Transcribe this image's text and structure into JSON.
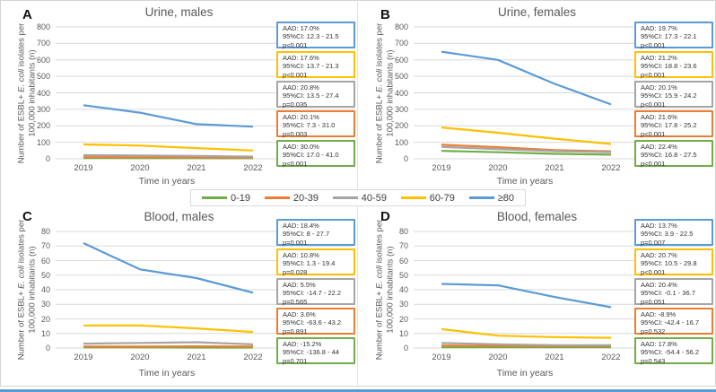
{
  "figure": {
    "xlabel": "Time in years",
    "ylabel": {
      "prefix": "Number of ESBL+ ",
      "italic": "E. coli",
      "suffix": " isolates per",
      "line2": "100,000 inhabitants (n)"
    },
    "years": [
      "2019",
      "2020",
      "2021",
      "2022"
    ],
    "colors": {
      "age_0_19": "#70AD47",
      "age_20_39": "#ED7D31",
      "age_40_59": "#A5A5A5",
      "age_60_79": "#FFC000",
      "age_80plus": "#5B9BD5",
      "gridline": "#D9D9D9",
      "axis_text": "#595959",
      "bottom_rule": "#5B9BD5"
    },
    "legend": {
      "items": [
        {
          "label": "0-19",
          "color": "#70AD47"
        },
        {
          "label": "20-39",
          "color": "#ED7D31"
        },
        {
          "label": "40-59",
          "color": "#A5A5A5"
        },
        {
          "label": "60-79",
          "color": "#FFC000"
        },
        {
          "label": "≥80",
          "color": "#5B9BD5"
        }
      ]
    }
  },
  "chart_data": [
    {
      "id": "A",
      "type": "line",
      "title": "Urine, males",
      "xlabel": "Time in years",
      "ylabel": "Number of ESBL+ E. coli isolates per 100,000 inhabitants (n)",
      "x": [
        "2019",
        "2020",
        "2021",
        "2022"
      ],
      "ylim": [
        0,
        800
      ],
      "ytick_step": 100,
      "grid": true,
      "series": [
        {
          "name": "0-19",
          "color": "#70AD47",
          "values": [
            5,
            4,
            4,
            3
          ]
        },
        {
          "name": "20-39",
          "color": "#ED7D31",
          "values": [
            10,
            9,
            8,
            7
          ]
        },
        {
          "name": "40-59",
          "color": "#A5A5A5",
          "values": [
            22,
            20,
            17,
            13
          ]
        },
        {
          "name": "60-79",
          "color": "#FFC000",
          "values": [
            87,
            80,
            65,
            50
          ]
        },
        {
          "name": "≥80",
          "color": "#5B9BD5",
          "values": [
            325,
            280,
            210,
            195
          ]
        }
      ],
      "annotations": [
        {
          "series": "≥80",
          "color": "#5B9BD5",
          "aad": "AAD: 17.0%",
          "ci": "95%CI: 12.3 - 21.5",
          "p": "p<0.001"
        },
        {
          "series": "60-79",
          "color": "#FFC000",
          "aad": "AAD: 17.6%",
          "ci": "95%CI: 13.7 - 21.3",
          "p": "p<0.001"
        },
        {
          "series": "40-59",
          "color": "#A5A5A5",
          "aad": "AAD: 20.8%",
          "ci": "95%CI: 13.5 - 27.4",
          "p": "p=0.035"
        },
        {
          "series": "20-39",
          "color": "#ED7D31",
          "aad": "AAD: 20.1%",
          "ci": "95%CI: 7.3 - 31.0",
          "p": "p=0.003"
        },
        {
          "series": "0-19",
          "color": "#70AD47",
          "aad": "AAD: 30.0%",
          "ci": "95%CI: 17.0 - 41.0",
          "p": "p<0.001"
        }
      ]
    },
    {
      "id": "B",
      "type": "line",
      "title": "Urine, females",
      "xlabel": "Time in years",
      "ylabel": "Number of ESBL+ E. coli isolates per 100,000 inhabitants (n)",
      "x": [
        "2019",
        "2020",
        "2021",
        "2022"
      ],
      "ylim": [
        0,
        800
      ],
      "ytick_step": 100,
      "grid": true,
      "series": [
        {
          "name": "0-19",
          "color": "#70AD47",
          "values": [
            48,
            40,
            30,
            25
          ]
        },
        {
          "name": "20-39",
          "color": "#ED7D31",
          "values": [
            85,
            70,
            52,
            45
          ]
        },
        {
          "name": "40-59",
          "color": "#A5A5A5",
          "values": [
            72,
            58,
            46,
            40
          ]
        },
        {
          "name": "60-79",
          "color": "#FFC000",
          "values": [
            190,
            158,
            122,
            90
          ]
        },
        {
          "name": "≥80",
          "color": "#5B9BD5",
          "values": [
            650,
            600,
            455,
            330
          ]
        }
      ],
      "annotations": [
        {
          "series": "≥80",
          "color": "#5B9BD5",
          "aad": "AAD: 19.7%",
          "ci": "95%CI: 17.3 - 22.1",
          "p": "p<0.001"
        },
        {
          "series": "60-79",
          "color": "#FFC000",
          "aad": "AAD: 21.2%",
          "ci": "95%CI: 18.8 - 23.6",
          "p": "p<0.001"
        },
        {
          "series": "40-59",
          "color": "#A5A5A5",
          "aad": "AAD: 20.1%",
          "ci": "95%CI: 15.9 - 24.2",
          "p": "p<0.001"
        },
        {
          "series": "20-39",
          "color": "#ED7D31",
          "aad": "AAD: 21.6%",
          "ci": "95%CI: 17.8 - 25.2",
          "p": "p<0.001"
        },
        {
          "series": "0-19",
          "color": "#70AD47",
          "aad": "AAD: 22.4%",
          "ci": "95%CI: 16.8 - 27.5",
          "p": "p<0.001"
        }
      ]
    },
    {
      "id": "C",
      "type": "line",
      "title": "Blood, males",
      "xlabel": "Time in years",
      "ylabel": "Number of ESBL+ E. coli isolates per 100,000 inhabitants (n)",
      "x": [
        "2019",
        "2020",
        "2021",
        "2022"
      ],
      "ylim": [
        0,
        80
      ],
      "ytick_step": 10,
      "grid": true,
      "series": [
        {
          "name": "0-19",
          "color": "#70AD47",
          "values": [
            0.4,
            0.4,
            0.3,
            0.3
          ]
        },
        {
          "name": "20-39",
          "color": "#ED7D31",
          "values": [
            1,
            1,
            1.2,
            1
          ]
        },
        {
          "name": "40-59",
          "color": "#A5A5A5",
          "values": [
            3,
            3.5,
            4,
            2.5
          ]
        },
        {
          "name": "60-79",
          "color": "#FFC000",
          "values": [
            15.5,
            15.5,
            13.5,
            11
          ]
        },
        {
          "name": "≥80",
          "color": "#5B9BD5",
          "values": [
            72,
            54,
            48,
            38
          ]
        }
      ],
      "annotations": [
        {
          "series": "≥80",
          "color": "#5B9BD5",
          "aad": "AAD: 18.4%",
          "ci": "95%CI: 8 - 27.7",
          "p": "p=0.001"
        },
        {
          "series": "60-79",
          "color": "#FFC000",
          "aad": "AAD: 10.8%",
          "ci": "95%CI: 1.3 - 19.4",
          "p": "p=0.028"
        },
        {
          "series": "40-59",
          "color": "#A5A5A5",
          "aad": "AAD: 5.5%",
          "ci": "95%CI: -14.7 - 22.2",
          "p": "p=0.565"
        },
        {
          "series": "20-39",
          "color": "#ED7D31",
          "aad": "AAD: 3.6%",
          "ci": "95%CI: -63.6 - 43.2",
          "p": "p=0.891"
        },
        {
          "series": "0-19",
          "color": "#70AD47",
          "aad": "AAD: -15.2%",
          "ci": "95%CI: -136.8 - 44",
          "p": "p=0.701"
        }
      ]
    },
    {
      "id": "D",
      "type": "line",
      "title": "Blood, females",
      "xlabel": "Time in years",
      "ylabel": "Number of ESBL+ E. coli isolates per 100,000 inhabitants (n)",
      "x": [
        "2019",
        "2020",
        "2021",
        "2022"
      ],
      "ylim": [
        0,
        80
      ],
      "ytick_step": 10,
      "grid": true,
      "series": [
        {
          "name": "0-19",
          "color": "#70AD47",
          "values": [
            0.5,
            0.5,
            0.5,
            0.5
          ]
        },
        {
          "name": "20-39",
          "color": "#ED7D31",
          "values": [
            1.7,
            1.5,
            1.5,
            1.5
          ]
        },
        {
          "name": "40-59",
          "color": "#A5A5A5",
          "values": [
            3.5,
            2.5,
            2,
            2
          ]
        },
        {
          "name": "60-79",
          "color": "#FFC000",
          "values": [
            13,
            8.5,
            7.5,
            7
          ]
        },
        {
          "name": "≥80",
          "color": "#5B9BD5",
          "values": [
            44,
            43,
            35,
            28
          ]
        }
      ],
      "annotations": [
        {
          "series": "≥80",
          "color": "#5B9BD5",
          "aad": "AAD: 13.7%",
          "ci": "95%CI: 3.9 - 22.5",
          "p": "p=0.007"
        },
        {
          "series": "60-79",
          "color": "#FFC000",
          "aad": "AAD: 20.7%",
          "ci": "95%CI: 10.5 - 29.8",
          "p": "p<0.001"
        },
        {
          "series": "40-59",
          "color": "#A5A5A5",
          "aad": "AAD: 20.4%",
          "ci": "95%CI: -0.1 - 36.7",
          "p": "p=0.051"
        },
        {
          "series": "20-39",
          "color": "#ED7D31",
          "aad": "AAD: -8.9%",
          "ci": "95%CI: -42.4 - 16.7",
          "p": "p=0.532"
        },
        {
          "series": "0-19",
          "color": "#70AD47",
          "aad": "AAD: 17.8%",
          "ci": "95%CI: -54.4 - 56.2",
          "p": "p=0.543"
        }
      ]
    }
  ]
}
